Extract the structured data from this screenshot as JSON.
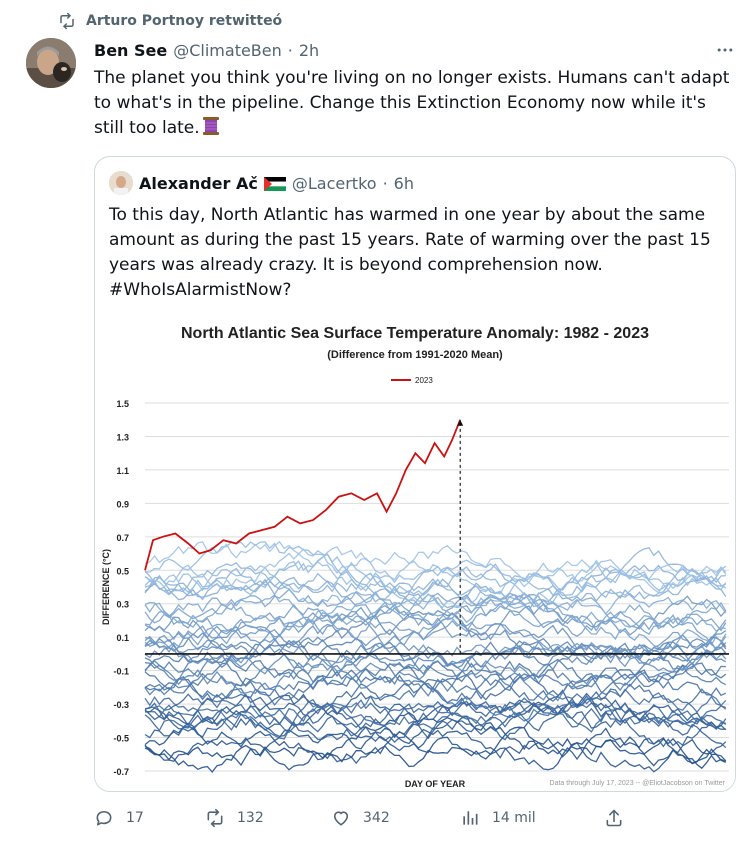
{
  "retweet": {
    "text": "Arturo Portnoy retwitteó"
  },
  "tweet": {
    "author_name": "Ben See",
    "author_handle": "@ClimateBen",
    "dot": "·",
    "time": "2h",
    "text": "The planet you think you're living on no longer exists. Humans can't adapt to what's in the pipeline. Change this Extinction Economy now while it's still too late."
  },
  "quote": {
    "author_name": "Alexander Ač",
    "author_handle": "@Lacertko",
    "dot": "·",
    "time": "6h",
    "text": "To this day, North Atlantic has warmed in one year by about the same amount as during the past 15 years. Rate of warming over the past 15 years was already crazy. It is beyond comprehension now. #WhoIsAlarmistNow?"
  },
  "chart_data": {
    "type": "line",
    "title": "North Atlantic Sea Surface Temperature Anomaly: 1982 - 2023",
    "subtitle": "(Difference from 1991-2020 Mean)",
    "xlabel": "DAY OF YEAR",
    "ylabel": "DIFFERENCE (°C)",
    "ylim": [
      -0.7,
      1.5
    ],
    "yticks": [
      1.5,
      1.3,
      1.1,
      0.9,
      0.7,
      0.5,
      0.3,
      0.1,
      -0.1,
      -0.3,
      -0.5,
      -0.7
    ],
    "ytick_labels": [
      "1.5",
      "1.3",
      "1.1",
      "0.9",
      "0.7",
      "0.5",
      "0.3",
      "0.1",
      "-0.1",
      "-0.3",
      "-0.5",
      "-0.7"
    ],
    "xlim": [
      1,
      366
    ],
    "grid": true,
    "legend": {
      "placement": "top-center",
      "entries": [
        "2023"
      ]
    },
    "highlight_color": "#cc1111",
    "background_colors": [
      "#1f4e8a",
      "#9ec3e8"
    ],
    "zero_line": 0,
    "annotation": "Data through July 17, 2023 -- @EliotJacobson on Twitter",
    "series": [
      {
        "name": "2023",
        "color": "#cc1111",
        "x": [
          1,
          6,
          12,
          20,
          28,
          35,
          42,
          50,
          58,
          66,
          74,
          82,
          90,
          98,
          106,
          114,
          122,
          130,
          138,
          146,
          152,
          158,
          164,
          170,
          176,
          182,
          188,
          193,
          198
        ],
        "y": [
          0.5,
          0.68,
          0.7,
          0.72,
          0.66,
          0.6,
          0.62,
          0.68,
          0.66,
          0.72,
          0.74,
          0.76,
          0.82,
          0.78,
          0.8,
          0.86,
          0.94,
          0.96,
          0.92,
          0.96,
          0.85,
          0.96,
          1.1,
          1.2,
          1.14,
          1.26,
          1.18,
          1.28,
          1.4
        ]
      }
    ]
  },
  "actions": {
    "reply_count": "17",
    "retweet_count": "132",
    "like_count": "342",
    "view_count": "14 mil"
  }
}
